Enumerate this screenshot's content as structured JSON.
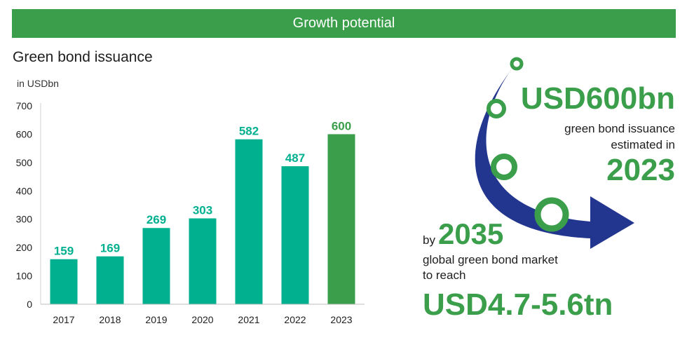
{
  "header": {
    "title": "Growth potential"
  },
  "chart_data": {
    "type": "bar",
    "title": "Green bond issuance",
    "ylabel": "in USDbn",
    "categories": [
      "2017",
      "2018",
      "2019",
      "2020",
      "2021",
      "2022",
      "2023"
    ],
    "values": [
      159,
      169,
      269,
      303,
      582,
      487,
      600
    ],
    "ylim": [
      0,
      700
    ],
    "yticks": [
      0,
      100,
      200,
      300,
      400,
      500,
      600,
      700
    ],
    "bar_colors": [
      "#00b08f",
      "#00b08f",
      "#00b08f",
      "#00b08f",
      "#00b08f",
      "#00b08f",
      "#3a9e4b"
    ],
    "label_colors": [
      "#00b08f",
      "#00b08f",
      "#00b08f",
      "#00b08f",
      "#00b08f",
      "#00b08f",
      "#3a9e4b"
    ],
    "grid": false,
    "legend": "none"
  },
  "highlights": {
    "amount_2023": "USD600bn",
    "issuance_note_line1": "green bond issuance",
    "issuance_note_line2": "estimated in",
    "year_2023": "2023",
    "by_label": "by",
    "year_2035": "2035",
    "market_note_line1": "global green bond market",
    "market_note_line2": "to reach",
    "amount_2035": "USD4.7-5.6tn"
  },
  "colors": {
    "banner": "#3a9e4b",
    "bar": "#00b08f",
    "highlight": "#3a9e4b",
    "arrow": "#23368f"
  }
}
